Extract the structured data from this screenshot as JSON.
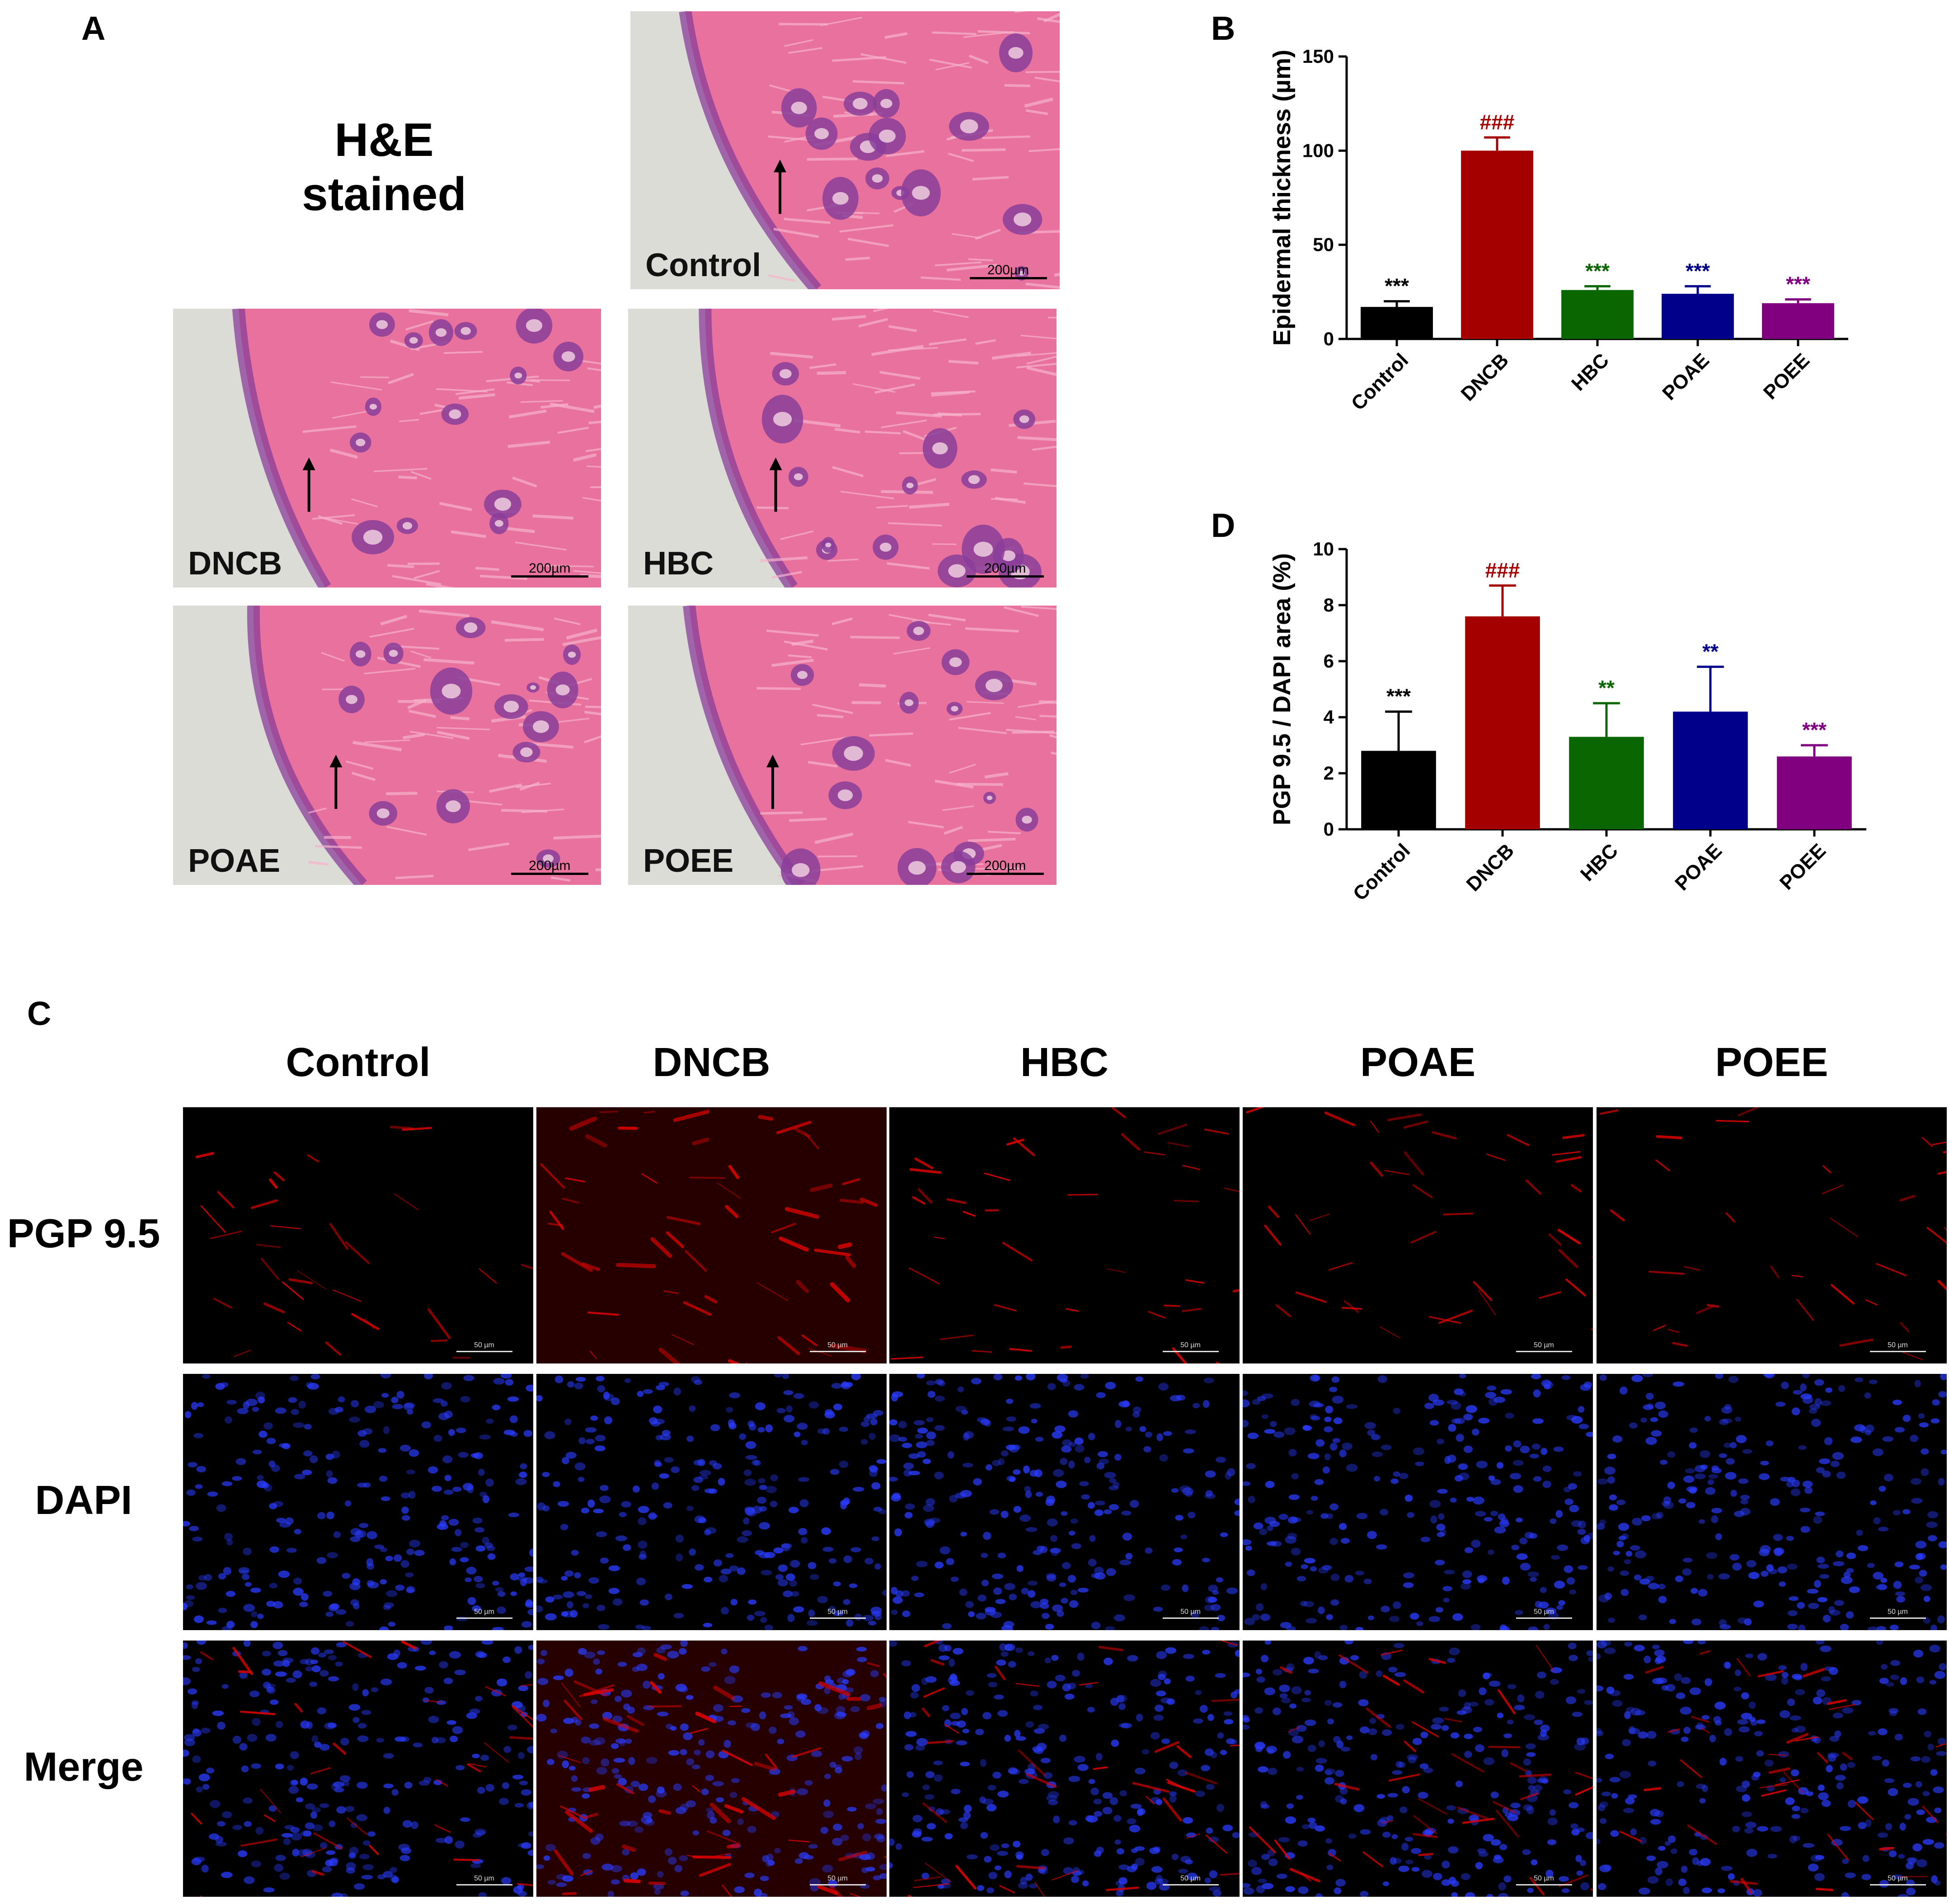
{
  "panel_a": {
    "letter": "A",
    "title_line1": "H&E",
    "title_line2": "stained",
    "tiles": [
      {
        "label": "Control",
        "scale": "200µm"
      },
      {
        "label": "DNCB",
        "scale": "200µm"
      },
      {
        "label": "HBC",
        "scale": "200µm"
      },
      {
        "label": "POAE",
        "scale": "200µm"
      },
      {
        "label": "POEE",
        "scale": "200µm"
      }
    ]
  },
  "panel_c": {
    "letter": "C",
    "columns": [
      "Control",
      "DNCB",
      "HBC",
      "POAE",
      "POEE"
    ],
    "rows": [
      "PGP 9.5",
      "DAPI",
      "Merge"
    ],
    "scale": "50 µm"
  },
  "colors": {
    "Control": "#000000",
    "DNCB": "#a50000",
    "HBC": "#0a6600",
    "POAE": "#00008b",
    "POEE": "#800080",
    "he_pink": "#e9719d",
    "he_purple": "#8a3e9a",
    "pgp_red": "#e00000",
    "dapi_blue": "#2a3cff"
  },
  "chart_data": [
    {
      "panel": "B",
      "type": "bar",
      "ylabel": "Epidermal thickness (µm)",
      "ylim": [
        0,
        150
      ],
      "yticks": [
        0,
        50,
        100,
        150
      ],
      "categories": [
        "Control",
        "DNCB",
        "HBC",
        "POAE",
        "POEE"
      ],
      "values": [
        17,
        100,
        26,
        24,
        19
      ],
      "errors": [
        3,
        7,
        2,
        4,
        2
      ],
      "annotations": [
        "***",
        "###",
        "***",
        "***",
        "***"
      ]
    },
    {
      "panel": "D",
      "type": "bar",
      "ylabel": "PGP 9.5 / DAPI area (%)",
      "ylim": [
        0,
        10
      ],
      "yticks": [
        0,
        2,
        4,
        6,
        8,
        10
      ],
      "categories": [
        "Control",
        "DNCB",
        "HBC",
        "POAE",
        "POEE"
      ],
      "values": [
        2.8,
        7.6,
        3.3,
        4.2,
        2.6
      ],
      "errors": [
        1.4,
        1.1,
        1.2,
        1.6,
        0.4
      ],
      "annotations": [
        "***",
        "###",
        "**",
        "**",
        "***"
      ]
    }
  ]
}
